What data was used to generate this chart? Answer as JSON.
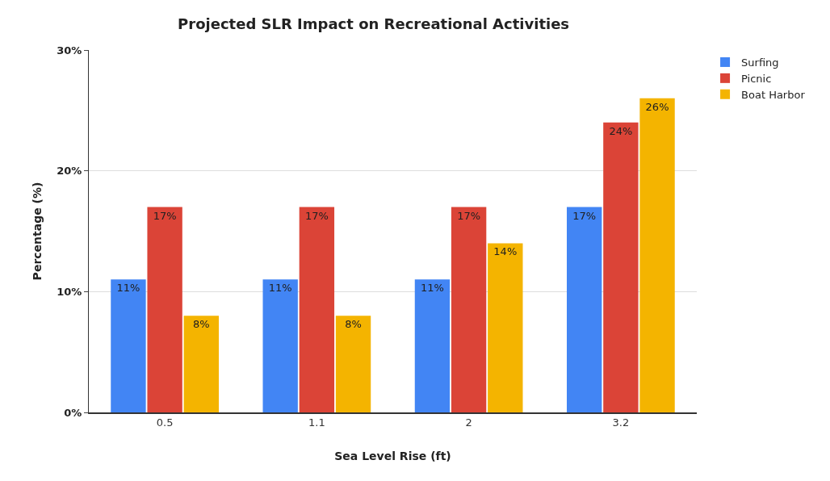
{
  "chart_data": {
    "type": "bar",
    "title": "Projected SLR Impact on Recreational Activities",
    "xlabel": "Sea Level Rise (ft)",
    "ylabel": "Percentage (%)",
    "categories": [
      "0.5",
      "1.1",
      "2",
      "3.2"
    ],
    "series": [
      {
        "name": "Surfing",
        "color": "#4285f4",
        "values": [
          11,
          11,
          11,
          17
        ],
        "value_labels": [
          "11%",
          "11%",
          "11%",
          "17%"
        ]
      },
      {
        "name": "Picnic",
        "color": "#db4437",
        "values": [
          17,
          17,
          17,
          24
        ],
        "value_labels": [
          "17%",
          "17%",
          "17%",
          "24%"
        ]
      },
      {
        "name": "Boat Harbor",
        "color": "#f4b400",
        "values": [
          8,
          8,
          14,
          26
        ],
        "value_labels": [
          "8%",
          "8%",
          "14%",
          "26%"
        ]
      }
    ],
    "ylim": [
      0,
      30
    ],
    "yticks": [
      {
        "value": 0,
        "label": "0%"
      },
      {
        "value": 10,
        "label": "10%"
      },
      {
        "value": 20,
        "label": "20%"
      },
      {
        "value": 30,
        "label": "30%"
      }
    ],
    "grid": "y",
    "legend": "top right"
  }
}
